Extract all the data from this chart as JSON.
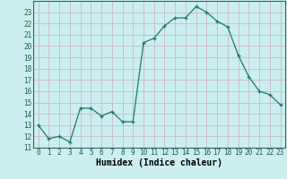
{
  "x": [
    0,
    1,
    2,
    3,
    4,
    5,
    6,
    7,
    8,
    9,
    10,
    11,
    12,
    13,
    14,
    15,
    16,
    17,
    18,
    19,
    20,
    21,
    22,
    23
  ],
  "y": [
    13.0,
    11.8,
    12.0,
    11.5,
    14.5,
    14.5,
    13.8,
    14.2,
    13.3,
    13.3,
    20.3,
    20.7,
    21.8,
    22.5,
    22.5,
    23.5,
    23.0,
    22.2,
    21.7,
    19.2,
    17.3,
    16.0,
    15.7,
    14.8
  ],
  "xlabel": "Humidex (Indice chaleur)",
  "line_color": "#1a7a6e",
  "bg_color": "#cceeed",
  "grid_color": "#b0d8d8",
  "xlim": [
    -0.5,
    23.5
  ],
  "ylim": [
    11,
    24
  ],
  "yticks": [
    11,
    12,
    13,
    14,
    15,
    16,
    17,
    18,
    19,
    20,
    21,
    22,
    23
  ],
  "xticks": [
    0,
    1,
    2,
    3,
    4,
    5,
    6,
    7,
    8,
    9,
    10,
    11,
    12,
    13,
    14,
    15,
    16,
    17,
    18,
    19,
    20,
    21,
    22,
    23
  ],
  "tick_fontsize": 5.5,
  "label_fontsize": 7.0
}
